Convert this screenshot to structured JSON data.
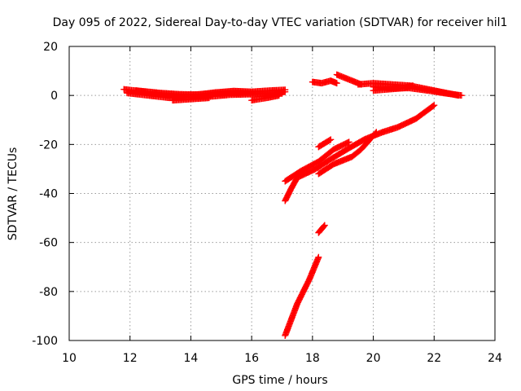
{
  "chart_data": {
    "type": "scatter",
    "title": "Day 095 of 2022, Sidereal Day-to-day VTEC variation (SDTVAR) for receiver hil1",
    "xlabel": "GPS time / hours",
    "ylabel": "SDTVAR / TECUs",
    "xlim": [
      10,
      24
    ],
    "ylim": [
      -100,
      20
    ],
    "x_ticks": [
      10,
      12,
      14,
      16,
      18,
      20,
      22,
      24
    ],
    "y_ticks": [
      -100,
      -80,
      -60,
      -40,
      -20,
      0,
      20
    ],
    "grid": true,
    "marker": "plus",
    "color": "#ff0000",
    "tracks": [
      [
        [
          11.8,
          2.5
        ],
        [
          12.5,
          1.5
        ],
        [
          13.2,
          0.5
        ],
        [
          13.8,
          0.2
        ],
        [
          14.4,
          0.5
        ],
        [
          15.0,
          0.8
        ],
        [
          15.6,
          1.0
        ],
        [
          16.2,
          0.8
        ],
        [
          16.8,
          1.0
        ],
        [
          17.1,
          1.5
        ]
      ],
      [
        [
          11.9,
          1.0
        ],
        [
          12.6,
          0.0
        ],
        [
          13.3,
          -1.0
        ],
        [
          14.0,
          -0.8
        ],
        [
          14.6,
          -0.5
        ],
        [
          15.3,
          0.3
        ],
        [
          16.0,
          0.5
        ],
        [
          16.6,
          0.5
        ],
        [
          17.0,
          0.8
        ]
      ],
      [
        [
          12.2,
          2.0
        ],
        [
          13.0,
          1.0
        ],
        [
          13.6,
          0.5
        ],
        [
          14.2,
          0.3
        ],
        [
          14.8,
          1.2
        ],
        [
          15.4,
          1.8
        ],
        [
          16.0,
          1.5
        ],
        [
          16.6,
          2.0
        ],
        [
          17.1,
          2.3
        ]
      ],
      [
        [
          13.4,
          -2.0
        ],
        [
          14.0,
          -1.5
        ],
        [
          14.6,
          -1.0
        ]
      ],
      [
        [
          16.0,
          -2.0
        ],
        [
          16.5,
          -1.0
        ],
        [
          16.9,
          0.0
        ]
      ],
      [
        [
          18.0,
          5.5
        ],
        [
          18.3,
          5.0
        ],
        [
          18.6,
          6.0
        ],
        [
          18.8,
          5.0
        ]
      ],
      [
        [
          18.8,
          8.5
        ],
        [
          19.3,
          6.0
        ],
        [
          19.6,
          4.5
        ]
      ],
      [
        [
          19.5,
          4.5
        ],
        [
          20.0,
          5.0
        ],
        [
          20.6,
          4.5
        ],
        [
          21.2,
          4.0
        ],
        [
          21.6,
          3.0
        ],
        [
          22.0,
          2.0
        ],
        [
          22.4,
          1.0
        ],
        [
          22.8,
          0.0
        ]
      ],
      [
        [
          20.0,
          3.5
        ],
        [
          20.6,
          3.0
        ],
        [
          21.2,
          3.0
        ],
        [
          21.8,
          2.0
        ],
        [
          22.3,
          1.0
        ],
        [
          22.9,
          0.0
        ]
      ],
      [
        [
          20.0,
          2.0
        ],
        [
          20.5,
          2.5
        ],
        [
          21.0,
          3.0
        ],
        [
          21.3,
          4.0
        ]
      ],
      [
        [
          17.1,
          -35.0
        ],
        [
          17.6,
          -31.0
        ],
        [
          18.2,
          -27.0
        ],
        [
          18.7,
          -22.0
        ],
        [
          19.2,
          -19.0
        ]
      ],
      [
        [
          17.1,
          -43.0
        ],
        [
          17.3,
          -38.0
        ],
        [
          17.5,
          -33.5
        ],
        [
          18.1,
          -30.0
        ],
        [
          18.6,
          -26.0
        ],
        [
          19.2,
          -21.5
        ],
        [
          19.7,
          -18.0
        ],
        [
          20.3,
          -15.0
        ],
        [
          20.8,
          -13.0
        ],
        [
          21.4,
          -9.5
        ],
        [
          22.0,
          -4.0
        ]
      ],
      [
        [
          18.2,
          -32.0
        ],
        [
          18.7,
          -28.0
        ],
        [
          19.3,
          -25.0
        ],
        [
          19.6,
          -22.0
        ],
        [
          20.1,
          -15.0
        ]
      ],
      [
        [
          18.2,
          -21.0
        ],
        [
          18.6,
          -18.0
        ]
      ],
      [
        [
          18.2,
          -56.0
        ],
        [
          18.4,
          -53.0
        ]
      ],
      [
        [
          17.1,
          -98.0
        ],
        [
          17.5,
          -85.0
        ],
        [
          17.9,
          -75.0
        ],
        [
          18.2,
          -66.0
        ]
      ]
    ]
  }
}
